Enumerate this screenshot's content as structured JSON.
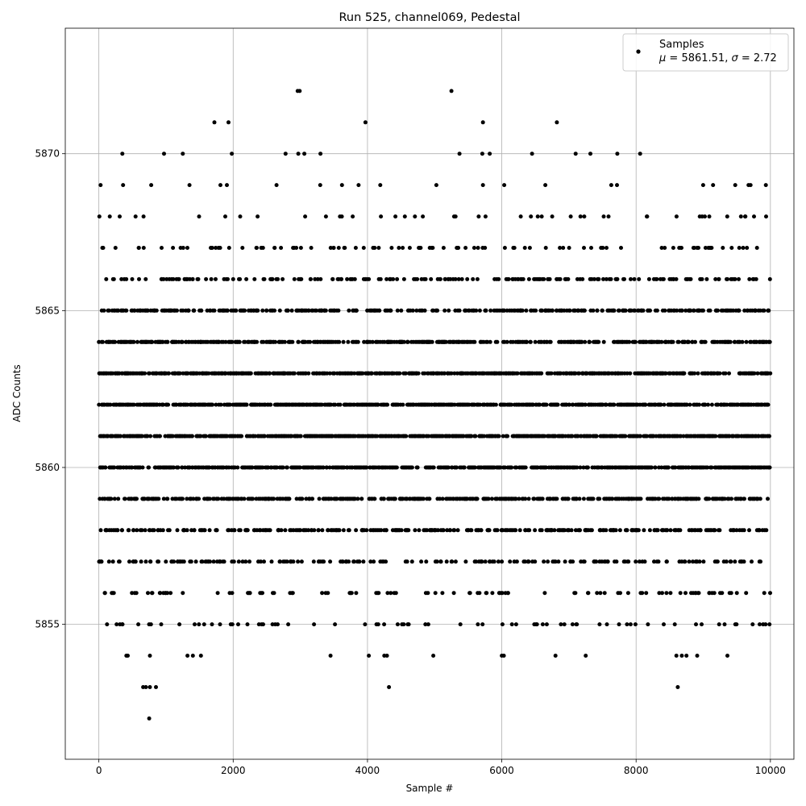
{
  "chart_data": {
    "type": "scatter",
    "title": "Run 525, channel069, Pedestal",
    "xlabel": "Sample #",
    "ylabel": "ADC Counts",
    "xlim": [
      -500,
      10350
    ],
    "ylim": [
      5850.7,
      5874
    ],
    "grid": true,
    "legend_position": "top-right",
    "marker_color": "#000000",
    "x_ticks": [
      0,
      2000,
      4000,
      6000,
      8000,
      10000
    ],
    "x_tick_labels": [
      "0",
      "2000",
      "4000",
      "6000",
      "8000",
      "10000"
    ],
    "y_ticks": [
      5855,
      5860,
      5865,
      5870
    ],
    "y_tick_labels": [
      "5855",
      "5860",
      "5865",
      "5870"
    ],
    "sample_count": 10000,
    "series": [
      {
        "name": "Samples",
        "annotation_parts": [
          "μ",
          " = 5861.51, ",
          "σ",
          " = 2.72"
        ],
        "mean": 5861.51,
        "sigma": 2.72,
        "outliers": [
          [
            750,
            5852
          ],
          [
            660,
            5853
          ],
          [
            700,
            5853
          ],
          [
            760,
            5853
          ],
          [
            850,
            5853
          ],
          [
            4320,
            5853
          ],
          [
            8620,
            5853
          ],
          [
            410,
            5854
          ],
          [
            430,
            5854
          ],
          [
            760,
            5854
          ],
          [
            1320,
            5854
          ],
          [
            1400,
            5854
          ],
          [
            1520,
            5854
          ],
          [
            3450,
            5854
          ],
          [
            4020,
            5854
          ],
          [
            4250,
            5854
          ],
          [
            4290,
            5854
          ],
          [
            4980,
            5854
          ],
          [
            6000,
            5854
          ],
          [
            6030,
            5854
          ],
          [
            6800,
            5854
          ],
          [
            7250,
            5854
          ],
          [
            8600,
            5854
          ],
          [
            8680,
            5854
          ],
          [
            8750,
            5854
          ],
          [
            8910,
            5854
          ],
          [
            9360,
            5854
          ],
          [
            2960,
            5872
          ],
          [
            2990,
            5872
          ],
          [
            5250,
            5872
          ],
          [
            1720,
            5871
          ],
          [
            1930,
            5871
          ],
          [
            3970,
            5871
          ],
          [
            5720,
            5871
          ],
          [
            6820,
            5871
          ],
          [
            350,
            5870
          ],
          [
            970,
            5870
          ],
          [
            1250,
            5870
          ],
          [
            1980,
            5870
          ],
          [
            2780,
            5870
          ],
          [
            2970,
            5870
          ],
          [
            3060,
            5870
          ],
          [
            3300,
            5870
          ],
          [
            5370,
            5870
          ],
          [
            5710,
            5870
          ],
          [
            5820,
            5870
          ],
          [
            6450,
            5870
          ],
          [
            7100,
            5870
          ],
          [
            7320,
            5870
          ],
          [
            7720,
            5870
          ],
          [
            8060,
            5870
          ]
        ]
      }
    ]
  }
}
